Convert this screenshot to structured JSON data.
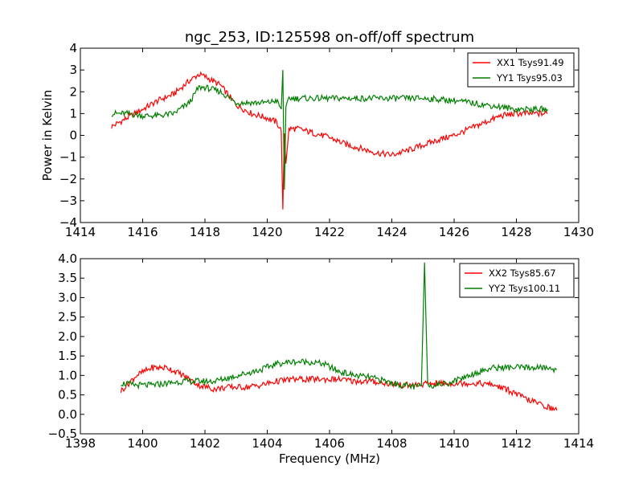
{
  "figure": {
    "background": "#ffffff"
  },
  "chart_data": [
    {
      "type": "line",
      "title": "ngc_253, ID:125598 on-off/off spectrum",
      "xlabel": "",
      "ylabel": "Power in Kelvin",
      "xlim": [
        1414,
        1430
      ],
      "ylim": [
        -4,
        4
      ],
      "xticks": [
        "1414",
        "1416",
        "1418",
        "1420",
        "1422",
        "1424",
        "1426",
        "1428",
        "1430"
      ],
      "yticks": [
        "4",
        "3",
        "2",
        "1",
        "0",
        "−1",
        "−2",
        "−3",
        "−4"
      ],
      "grid": false,
      "legend_position": "top-right",
      "series": [
        {
          "name": "XX1 Tsys91.49",
          "color": "#ff0000",
          "x": [
            1415.0,
            1415.5,
            1416.0,
            1416.5,
            1417.0,
            1417.5,
            1417.8,
            1418.0,
            1418.5,
            1419.0,
            1419.5,
            1420.0,
            1420.3,
            1420.45,
            1420.5,
            1420.55,
            1420.6,
            1420.7,
            1421.0,
            1421.5,
            1422.0,
            1422.5,
            1423.0,
            1423.5,
            1424.0,
            1424.5,
            1425.0,
            1425.5,
            1426.0,
            1426.5,
            1427.0,
            1427.5,
            1428.0,
            1428.5,
            1429.0
          ],
          "y": [
            0.4,
            0.8,
            1.2,
            1.6,
            1.9,
            2.5,
            2.8,
            2.7,
            2.3,
            1.4,
            1.0,
            0.8,
            0.6,
            0.2,
            -3.4,
            0.1,
            -1.3,
            0.3,
            0.3,
            0.1,
            -0.1,
            -0.4,
            -0.6,
            -0.8,
            -0.9,
            -0.7,
            -0.45,
            -0.2,
            0.0,
            0.3,
            0.6,
            0.9,
            1.0,
            1.0,
            1.0
          ]
        },
        {
          "name": "YY1 Tsys95.03",
          "color": "#007f00",
          "x": [
            1415.0,
            1415.5,
            1416.0,
            1416.5,
            1417.0,
            1417.5,
            1417.8,
            1418.0,
            1418.5,
            1419.0,
            1419.5,
            1420.0,
            1420.3,
            1420.45,
            1420.5,
            1420.55,
            1420.6,
            1420.7,
            1421.0,
            1421.5,
            1422.0,
            1422.5,
            1423.0,
            1423.5,
            1424.0,
            1424.5,
            1425.0,
            1425.5,
            1426.0,
            1426.5,
            1427.0,
            1427.5,
            1428.0,
            1428.5,
            1429.0
          ],
          "y": [
            1.0,
            1.0,
            0.9,
            0.9,
            1.0,
            1.5,
            2.2,
            2.2,
            2.0,
            1.5,
            1.5,
            1.5,
            1.6,
            1.2,
            3.0,
            -2.5,
            1.2,
            1.7,
            1.7,
            1.7,
            1.7,
            1.7,
            1.7,
            1.7,
            1.7,
            1.7,
            1.7,
            1.65,
            1.6,
            1.5,
            1.4,
            1.3,
            1.2,
            1.2,
            1.2
          ]
        }
      ]
    },
    {
      "type": "line",
      "title": "",
      "xlabel": "Frequency (MHz)",
      "ylabel": "",
      "xlim": [
        1398,
        1414
      ],
      "ylim": [
        -0.5,
        4.0
      ],
      "xticks": [
        "1398",
        "1400",
        "1402",
        "1404",
        "1406",
        "1408",
        "1410",
        "1412",
        "1414"
      ],
      "yticks": [
        "4.0",
        "3.5",
        "3.0",
        "2.5",
        "2.0",
        "1.5",
        "1.0",
        "0.5",
        "0.0",
        "−0.5"
      ],
      "grid": false,
      "legend_position": "top-right",
      "series": [
        {
          "name": "XX2 Tsys85.67",
          "color": "#ff0000",
          "x": [
            1399.3,
            1399.8,
            1400.3,
            1400.8,
            1401.3,
            1401.8,
            1402.3,
            1402.8,
            1403.3,
            1403.8,
            1404.3,
            1404.8,
            1405.3,
            1405.8,
            1406.3,
            1406.8,
            1407.3,
            1407.8,
            1408.3,
            1408.8,
            1409.3,
            1409.8,
            1410.3,
            1410.8,
            1411.3,
            1411.8,
            1412.3,
            1412.8,
            1413.3
          ],
          "y": [
            0.6,
            1.0,
            1.2,
            1.2,
            1.0,
            0.75,
            0.65,
            0.7,
            0.7,
            0.75,
            0.85,
            0.9,
            0.9,
            0.9,
            0.9,
            0.85,
            0.85,
            0.8,
            0.75,
            0.75,
            0.8,
            0.8,
            0.8,
            0.8,
            0.75,
            0.6,
            0.4,
            0.25,
            0.1
          ]
        },
        {
          "name": "YY2 Tsys100.11",
          "color": "#007f00",
          "x": [
            1399.3,
            1399.8,
            1400.3,
            1400.8,
            1401.3,
            1401.8,
            1402.3,
            1402.8,
            1403.3,
            1403.8,
            1404.3,
            1404.8,
            1405.3,
            1405.8,
            1406.3,
            1406.8,
            1407.3,
            1407.8,
            1408.3,
            1408.8,
            1408.95,
            1409.05,
            1409.15,
            1409.3,
            1409.8,
            1410.3,
            1410.8,
            1411.3,
            1411.8,
            1412.3,
            1412.8,
            1413.3
          ],
          "y": [
            0.8,
            0.75,
            0.75,
            0.8,
            0.85,
            0.85,
            0.85,
            0.95,
            1.05,
            1.15,
            1.3,
            1.35,
            1.35,
            1.3,
            1.1,
            1.0,
            0.95,
            0.85,
            0.75,
            0.7,
            0.75,
            3.9,
            0.75,
            0.75,
            0.8,
            0.95,
            1.1,
            1.2,
            1.2,
            1.2,
            1.2,
            1.15
          ]
        }
      ]
    }
  ]
}
